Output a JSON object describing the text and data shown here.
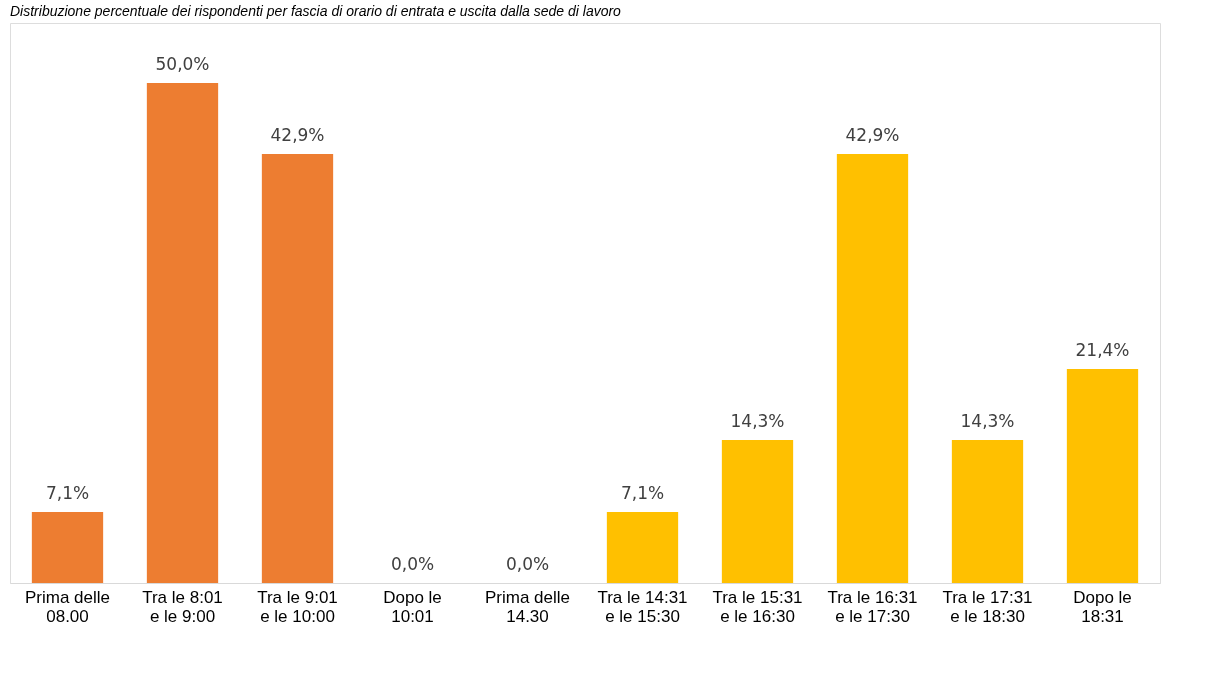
{
  "chart_data": {
    "type": "bar",
    "title": "Distribuzione percentuale dei rispondenti per fascia di orario di entrata e uscita dalla sede di lavoro",
    "categories": [
      "Prima delle 08.00",
      "Tra le 8:01 e le 9:00",
      "Tra le 9:01 e le 10:00",
      "Dopo le 10:01",
      "Prima delle 14.30",
      "Tra le 14:31 e le 15:30",
      "Tra le 15:31 e le 16:30",
      "Tra le 16:31 e le 17:30",
      "Tra le 17:31 e le 18:30",
      "Dopo le 18:31"
    ],
    "values": [
      7.1,
      50.0,
      42.9,
      0.0,
      0.0,
      7.1,
      14.3,
      42.9,
      14.3,
      21.4
    ],
    "value_labels": [
      "7,1%",
      "50,0%",
      "42,9%",
      "0,0%",
      "0,0%",
      "7,1%",
      "14,3%",
      "42,9%",
      "14,3%",
      "21,4%"
    ],
    "colors": [
      "#ed7d31",
      "#ed7d31",
      "#ed7d31",
      "#ed7d31",
      "#ffc000",
      "#ffc000",
      "#ffc000",
      "#ffc000",
      "#ffc000",
      "#ffc000"
    ],
    "grid": false
  }
}
